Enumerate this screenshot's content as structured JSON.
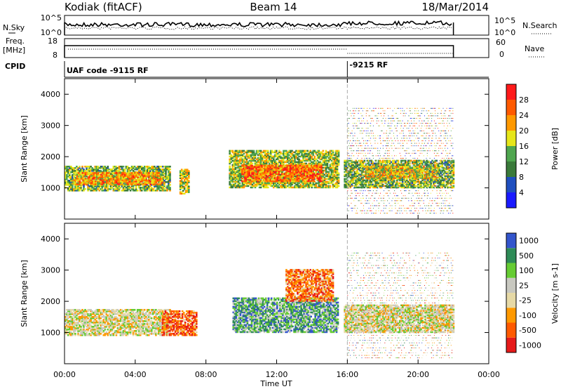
{
  "header": {
    "station": "Kodiak (fitACF)",
    "beam": "Beam 14",
    "date": "18/Mar/2014"
  },
  "noise_panel": {
    "left_label": "N.Sky",
    "right_label": "N.Search",
    "left_ticks": [
      "10^5",
      "10^0"
    ],
    "right_ticks": [
      "10^5",
      "10^0"
    ]
  },
  "freq_panel": {
    "left_label_line1": "Freq.",
    "left_label_line2": "[MHz]",
    "right_label": "Nave",
    "left_ticks": [
      "18",
      "8"
    ],
    "right_ticks": [
      "60",
      "0"
    ]
  },
  "cpid_panel": {
    "label": "CPID",
    "segments": [
      {
        "start_hour": 0,
        "end_hour": 16,
        "text": "UAF code -9115 RF"
      },
      {
        "start_hour": 16,
        "end_hour": 22,
        "text": "-9215 RF"
      }
    ]
  },
  "x_axis": {
    "label": "Time UT",
    "tick_labels": [
      "00:00",
      "04:00",
      "08:00",
      "12:00",
      "16:00",
      "20:00",
      "00:00"
    ],
    "range_hours": [
      0,
      24
    ]
  },
  "colors": {
    "power": [
      "#1a1aff",
      "#1f4fbf",
      "#3a7a3a",
      "#4fa64f",
      "#e6e61a",
      "#ff9900",
      "#ff5a00",
      "#ff1a1a"
    ],
    "velocity": [
      "#e61a1a",
      "#ff5a00",
      "#ff9900",
      "#e6d9a6",
      "#c8c8c0",
      "#66cc33",
      "#2e8b57",
      "#3355cc"
    ]
  },
  "chart_data": [
    {
      "type": "heatmap",
      "name": "power",
      "ylabel": "Slant Range [km]",
      "ylim": [
        0,
        4500
      ],
      "y_ticks": [
        1000,
        2000,
        3000,
        4000
      ],
      "colorbar_label": "Power [dB]",
      "colorbar_ticks": [
        "4",
        "8",
        "12",
        "16",
        "20",
        "24",
        "28"
      ],
      "colorbar_range": [
        0,
        32
      ],
      "regions": [
        {
          "t0": 0,
          "t1": 6.0,
          "r0": 900,
          "r1": 1700,
          "level": 0.45
        },
        {
          "t0": 0.5,
          "t1": 5.5,
          "r0": 1100,
          "r1": 1500,
          "level": 0.7
        },
        {
          "t0": 6.5,
          "t1": 7.0,
          "r0": 800,
          "r1": 1600,
          "level": 0.55
        },
        {
          "t0": 9.3,
          "t1": 15.5,
          "r0": 1000,
          "r1": 2200,
          "level": 0.5
        },
        {
          "t0": 10.0,
          "t1": 14.5,
          "r0": 1200,
          "r1": 1700,
          "level": 0.8
        },
        {
          "t0": 15.8,
          "t1": 22.0,
          "r0": 1000,
          "r1": 1900,
          "level": 0.45
        },
        {
          "t0": 17.0,
          "t1": 21.0,
          "r0": 1300,
          "r1": 1700,
          "level": 0.6
        }
      ],
      "scatter": {
        "t0": 16.0,
        "t1": 22.0,
        "r0": 200,
        "r1": 3600,
        "density": 0.35
      }
    },
    {
      "type": "heatmap",
      "name": "velocity",
      "ylabel": "Slant Range [km]",
      "ylim": [
        0,
        4500
      ],
      "y_ticks": [
        1000,
        2000,
        3000,
        4000
      ],
      "colorbar_label": "Velocity [m s-1]",
      "colorbar_ticks": [
        "1000",
        "500",
        "100",
        "25",
        "-25",
        "-100",
        "-500",
        "-1000"
      ],
      "regions": [
        {
          "t0": 0,
          "t1": 6.0,
          "r0": 900,
          "r1": 1750,
          "level": 0.5
        },
        {
          "t0": 5.5,
          "t1": 7.5,
          "r0": 900,
          "r1": 1700,
          "level": 0.2
        },
        {
          "t0": 9.5,
          "t1": 15.5,
          "r0": 1000,
          "r1": 2100,
          "level": 0.75
        },
        {
          "t0": 12.5,
          "t1": 15.2,
          "r0": 2000,
          "r1": 3000,
          "level": 0.25
        },
        {
          "t0": 15.8,
          "t1": 22.0,
          "r0": 1000,
          "r1": 1900,
          "level": 0.5
        }
      ],
      "scatter": {
        "t0": 16.0,
        "t1": 22.0,
        "r0": 200,
        "r1": 3600,
        "density": 0.3
      }
    }
  ]
}
